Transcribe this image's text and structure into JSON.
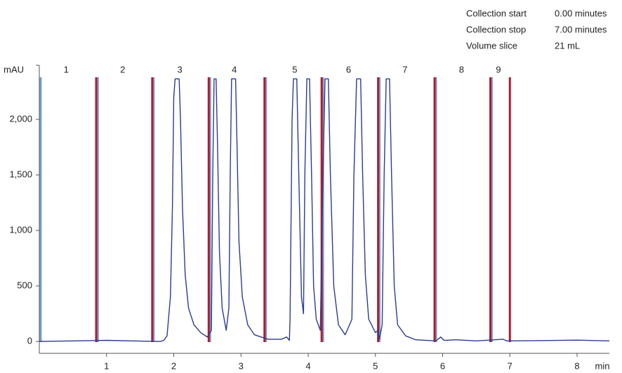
{
  "chart_data": {
    "type": "line",
    "y_label": "mAU",
    "x_label": "min",
    "color": "#2b3d8f",
    "x": [
      0,
      1.0,
      1.5,
      1.8,
      1.85,
      1.9,
      1.95,
      1.98,
      2.0,
      2.02,
      2.08,
      2.1,
      2.13,
      2.17,
      2.22,
      2.3,
      2.4,
      2.5,
      2.56,
      2.58,
      2.6,
      2.63,
      2.65,
      2.68,
      2.72,
      2.78,
      2.82,
      2.84,
      2.86,
      2.92,
      2.94,
      2.97,
      3.02,
      3.1,
      3.2,
      3.4,
      3.6,
      3.68,
      3.72,
      3.73,
      3.76,
      3.78,
      3.83,
      3.86,
      3.9,
      3.93,
      3.95,
      3.98,
      4.02,
      4.05,
      4.08,
      4.12,
      4.18,
      4.22,
      4.25,
      4.3,
      4.33,
      4.38,
      4.45,
      4.55,
      4.65,
      4.68,
      4.72,
      4.78,
      4.81,
      4.85,
      4.9,
      5.0,
      5.04,
      5.06,
      5.1,
      5.13,
      5.16,
      5.21,
      5.24,
      5.28,
      5.33,
      5.45,
      5.6,
      5.9,
      5.97,
      6.02,
      6.2,
      6.5,
      6.9,
      6.95,
      7.5,
      8.0,
      8.48
    ],
    "values": [
      0,
      10,
      3,
      0,
      10,
      50,
      400,
      1200,
      2200,
      2365,
      2365,
      2000,
      1200,
      600,
      300,
      150,
      80,
      40,
      100,
      1500,
      2365,
      2365,
      1800,
      800,
      300,
      100,
      300,
      1500,
      2365,
      2365,
      1800,
      900,
      400,
      150,
      60,
      20,
      20,
      40,
      10,
      200,
      2000,
      2365,
      2365,
      1500,
      400,
      250,
      1500,
      2365,
      2365,
      1500,
      500,
      200,
      100,
      1500,
      2365,
      2365,
      1500,
      500,
      150,
      60,
      200,
      1500,
      2365,
      2365,
      1500,
      600,
      200,
      80,
      100,
      20,
      150,
      1500,
      2365,
      2365,
      1500,
      500,
      150,
      50,
      15,
      5,
      40,
      10,
      15,
      5,
      20,
      5,
      8,
      12,
      5
    ],
    "xlim": [
      0,
      8.48
    ],
    "ylim": [
      -107,
      2487
    ],
    "xticks": [
      1,
      2,
      3,
      4,
      5,
      6,
      7,
      8
    ],
    "yticks": [
      0,
      500,
      {
        "value": 1000,
        "label": "1,000"
      },
      {
        "value": 1500,
        "label": "1,500"
      },
      {
        "value": 2000,
        "label": "2,000"
      }
    ],
    "fraction_starts": {
      "color": "#6fa0d0",
      "x": [
        0.02,
        0.87,
        1.7,
        2.54,
        3.37,
        4.22,
        5.06,
        5.9,
        6.73
      ]
    },
    "fraction_ends": {
      "color": "#b01c2e",
      "x": [
        0.846,
        1.68,
        2.52,
        3.35,
        4.2,
        5.04,
        5.88,
        6.71,
        7.0
      ]
    },
    "fractions": {
      "labels": [
        "1",
        "2",
        "3",
        "4",
        "5",
        "6",
        "7",
        "8",
        "9"
      ],
      "x": [
        0.4,
        1.24,
        2.09,
        2.9,
        3.8,
        4.6,
        5.44,
        6.28,
        6.83
      ]
    },
    "info": [
      [
        "Collection start",
        "0.00 minutes"
      ],
      [
        "Collection stop",
        "7.00 minutes"
      ],
      [
        "Volume slice",
        "21 mL"
      ]
    ]
  }
}
